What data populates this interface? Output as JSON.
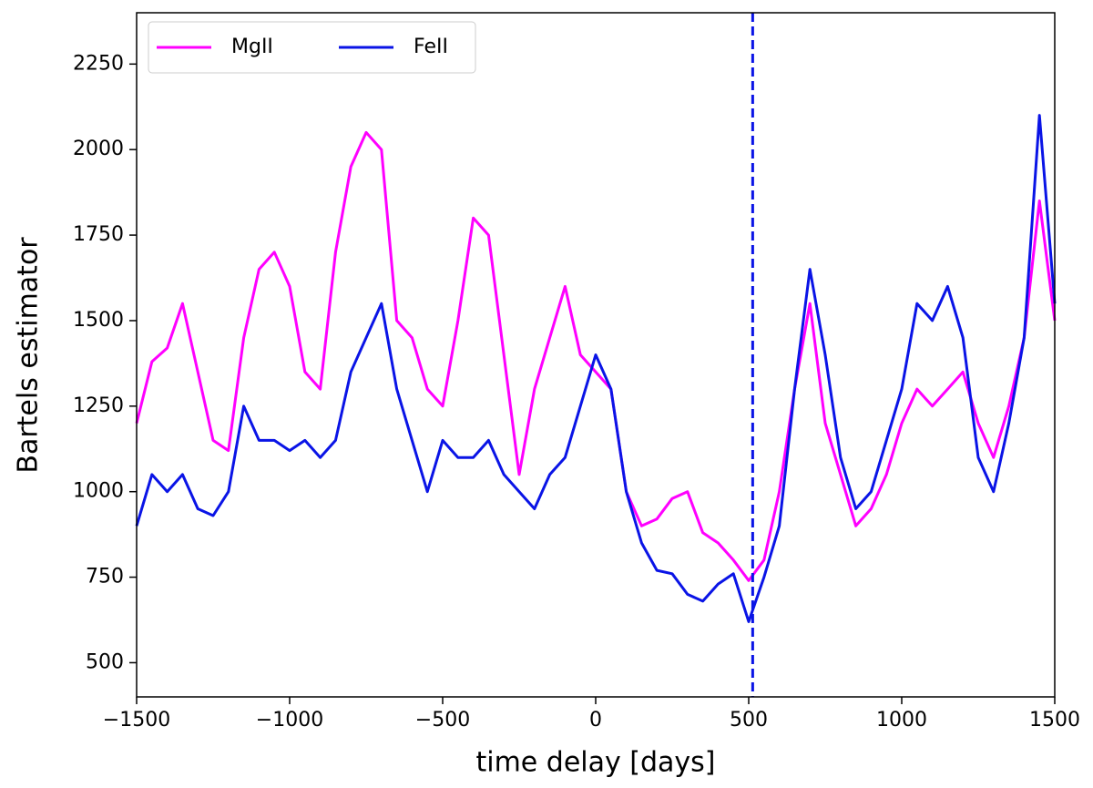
{
  "chart_data": {
    "type": "line",
    "xlabel": "time delay [days]",
    "ylabel": "Bartels estimator",
    "x": [
      -1500,
      -1450,
      -1400,
      -1350,
      -1300,
      -1250,
      -1200,
      -1150,
      -1100,
      -1050,
      -1000,
      -950,
      -900,
      -850,
      -800,
      -750,
      -700,
      -650,
      -600,
      -550,
      -500,
      -450,
      -400,
      -350,
      -300,
      -250,
      -200,
      -150,
      -100,
      -50,
      0,
      50,
      100,
      150,
      200,
      250,
      300,
      350,
      400,
      450,
      500,
      550,
      600,
      650,
      700,
      750,
      800,
      850,
      900,
      950,
      1000,
      1050,
      1100,
      1150,
      1200,
      1250,
      1300,
      1350,
      1400,
      1450,
      1500
    ],
    "series": [
      {
        "name": "MgII",
        "color": "#ff00ff",
        "values": [
          1200,
          1380,
          1420,
          1550,
          1350,
          1150,
          1120,
          1450,
          1650,
          1700,
          1600,
          1350,
          1300,
          1700,
          1950,
          2050,
          2000,
          1500,
          1450,
          1300,
          1250,
          1500,
          1800,
          1750,
          1400,
          1050,
          1300,
          1450,
          1600,
          1400,
          1350,
          1300,
          1000,
          900,
          920,
          980,
          1000,
          880,
          850,
          800,
          740,
          800,
          1000,
          1300,
          1550,
          1200,
          1050,
          900,
          950,
          1050,
          1200,
          1300,
          1250,
          1300,
          1350,
          1200,
          1100,
          1250,
          1450,
          1850,
          1500
        ]
      },
      {
        "name": "FeII",
        "color": "#0a14e6",
        "values": [
          900,
          1050,
          1000,
          1050,
          950,
          930,
          1000,
          1250,
          1150,
          1150,
          1120,
          1150,
          1100,
          1150,
          1350,
          1450,
          1550,
          1300,
          1150,
          1000,
          1150,
          1100,
          1100,
          1150,
          1050,
          1000,
          950,
          1050,
          1100,
          1250,
          1400,
          1300,
          1000,
          850,
          770,
          760,
          700,
          680,
          730,
          760,
          620,
          750,
          900,
          1300,
          1650,
          1400,
          1100,
          950,
          1000,
          1150,
          1300,
          1550,
          1500,
          1600,
          1450,
          1100,
          1000,
          1200,
          1450,
          2100,
          1550
        ]
      }
    ],
    "vline": 513,
    "vline_color": "#0a14e6",
    "xlim": [
      -1500,
      1500
    ],
    "xticks": [
      {
        "value": -1500,
        "label": "−1500"
      },
      {
        "value": -1000,
        "label": "−1000"
      },
      {
        "value": -500,
        "label": "−500"
      },
      0,
      500,
      1000,
      1500
    ],
    "ylim": [
      400,
      2400
    ],
    "yticks": [
      500,
      750,
      1000,
      1250,
      1500,
      1750,
      2000,
      2250
    ],
    "legend": "upper left"
  }
}
